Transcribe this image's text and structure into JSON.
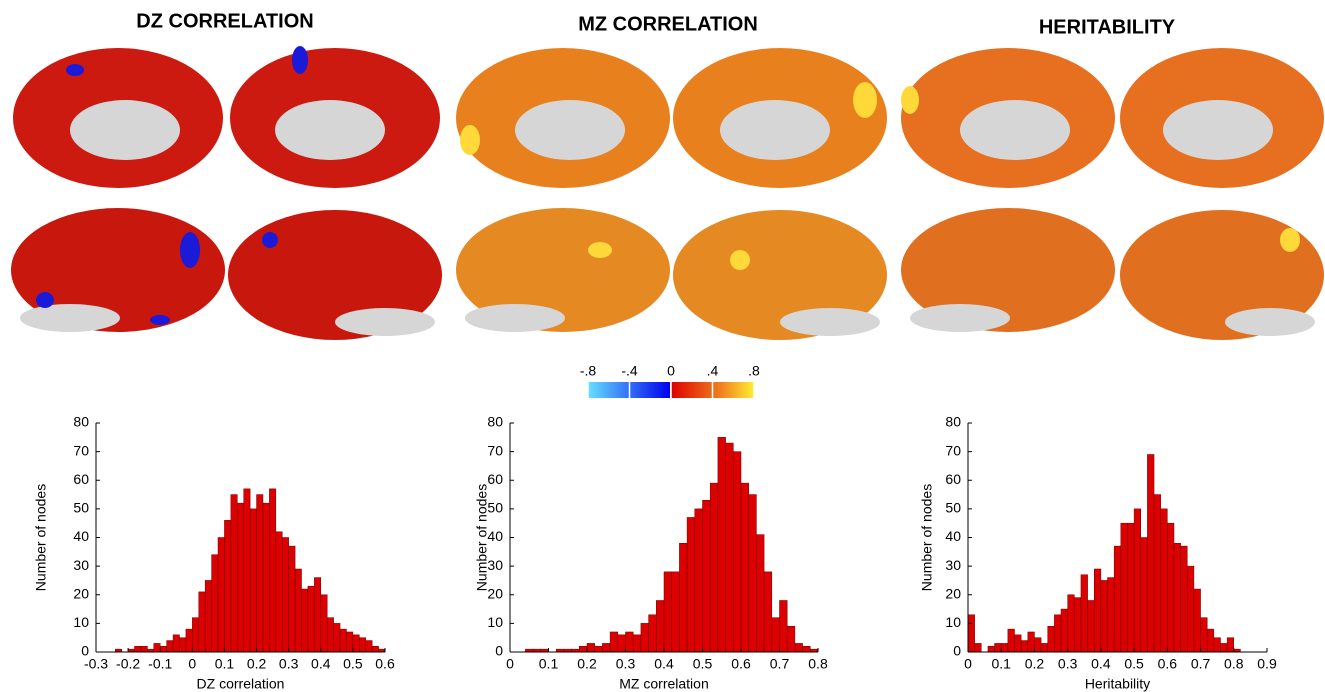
{
  "chart_data": [
    {
      "type": "histogram",
      "title": "DZ CORRELATION",
      "xlabel": "DZ correlation",
      "ylabel": "Number of nodes",
      "color": "#dd0000",
      "bins": [
        -0.24,
        -0.22,
        -0.2,
        -0.18,
        -0.16,
        -0.14,
        -0.12,
        -0.1,
        -0.08,
        -0.06,
        -0.04,
        -0.02,
        0,
        0.02,
        0.04,
        0.06,
        0.08,
        0.1,
        0.12,
        0.14,
        0.16,
        0.18,
        0.2,
        0.22,
        0.24,
        0.26,
        0.28,
        0.3,
        0.32,
        0.34,
        0.36,
        0.38,
        0.4,
        0.42,
        0.44,
        0.46,
        0.48,
        0.5,
        0.52,
        0.54,
        0.56,
        0.58,
        0.6
      ],
      "counts": [
        1,
        0,
        1,
        2,
        2,
        1,
        3,
        2,
        4,
        6,
        5,
        8,
        12,
        21,
        25,
        34,
        40,
        46,
        55,
        52,
        57,
        50,
        55,
        52,
        57,
        42,
        40,
        37,
        29,
        22,
        23,
        26,
        20,
        12,
        10,
        8,
        7,
        6,
        5,
        4,
        2,
        1
      ],
      "xlim": [
        -0.3,
        0.6
      ],
      "xticks": [
        -0.3,
        -0.2,
        -0.1,
        0,
        0.1,
        0.2,
        0.3,
        0.4,
        0.5,
        0.6
      ],
      "ylim": [
        0,
        80
      ],
      "yticks": [
        0,
        10,
        20,
        30,
        40,
        50,
        60,
        70,
        80
      ]
    },
    {
      "type": "histogram",
      "title": "MZ CORRELATION",
      "xlabel": "MZ correlation",
      "ylabel": "Number of nodes",
      "color": "#dd0000",
      "bins": [
        0.04,
        0.06,
        0.08,
        0.1,
        0.12,
        0.14,
        0.16,
        0.18,
        0.2,
        0.22,
        0.24,
        0.26,
        0.28,
        0.3,
        0.32,
        0.34,
        0.36,
        0.38,
        0.4,
        0.42,
        0.44,
        0.46,
        0.48,
        0.5,
        0.52,
        0.54,
        0.56,
        0.58,
        0.6,
        0.62,
        0.64,
        0.66,
        0.68,
        0.7,
        0.72,
        0.74,
        0.76,
        0.78,
        0.8
      ],
      "counts": [
        1,
        1,
        1,
        0,
        1,
        1,
        1,
        2,
        3,
        2,
        3,
        7,
        6,
        7,
        6,
        10,
        13,
        18,
        28,
        28,
        38,
        47,
        50,
        53,
        59,
        75,
        73,
        70,
        59,
        55,
        41,
        28,
        12,
        18,
        9,
        3,
        2,
        1
      ],
      "xlim": [
        0,
        0.8
      ],
      "xticks": [
        0,
        0.1,
        0.2,
        0.3,
        0.4,
        0.5,
        0.6,
        0.7,
        0.8
      ],
      "ylim": [
        0,
        80
      ],
      "yticks": [
        0,
        10,
        20,
        30,
        40,
        50,
        60,
        70,
        80
      ]
    },
    {
      "type": "histogram",
      "title": "HERITABILITY",
      "xlabel": "Heritability",
      "ylabel": "Number of nodes",
      "color": "#dd0000",
      "bins": [
        0,
        0.02,
        0.04,
        0.06,
        0.08,
        0.1,
        0.12,
        0.14,
        0.16,
        0.18,
        0.2,
        0.22,
        0.24,
        0.26,
        0.28,
        0.3,
        0.32,
        0.34,
        0.36,
        0.38,
        0.4,
        0.42,
        0.44,
        0.46,
        0.48,
        0.5,
        0.52,
        0.54,
        0.56,
        0.58,
        0.6,
        0.62,
        0.64,
        0.66,
        0.68,
        0.7,
        0.72,
        0.74,
        0.76,
        0.78,
        0.8,
        0.82
      ],
      "counts": [
        13,
        3,
        0,
        2,
        3,
        3,
        8,
        6,
        4,
        7,
        5,
        3,
        9,
        13,
        15,
        20,
        19,
        27,
        18,
        29,
        25,
        26,
        37,
        45,
        45,
        50,
        40,
        69,
        55,
        50,
        45,
        38,
        37,
        30,
        22,
        12,
        8,
        5,
        3,
        5,
        1
      ],
      "xlim": [
        0,
        0.9
      ],
      "xticks": [
        0,
        0.1,
        0.2,
        0.3,
        0.4,
        0.5,
        0.6,
        0.7,
        0.8,
        0.9
      ],
      "ylim": [
        0,
        80
      ],
      "yticks": [
        0,
        10,
        20,
        30,
        40,
        50,
        60,
        70,
        80
      ]
    }
  ],
  "colorbar": {
    "lim": [
      -0.8,
      0.8
    ],
    "ticks": [
      {
        "value": -0.8,
        "label": "-.8"
      },
      {
        "value": -0.4,
        "label": "-.4"
      },
      0,
      {
        "value": 0.4,
        "label": ".4"
      },
      {
        "value": 0.8,
        "label": ".8"
      }
    ]
  }
}
